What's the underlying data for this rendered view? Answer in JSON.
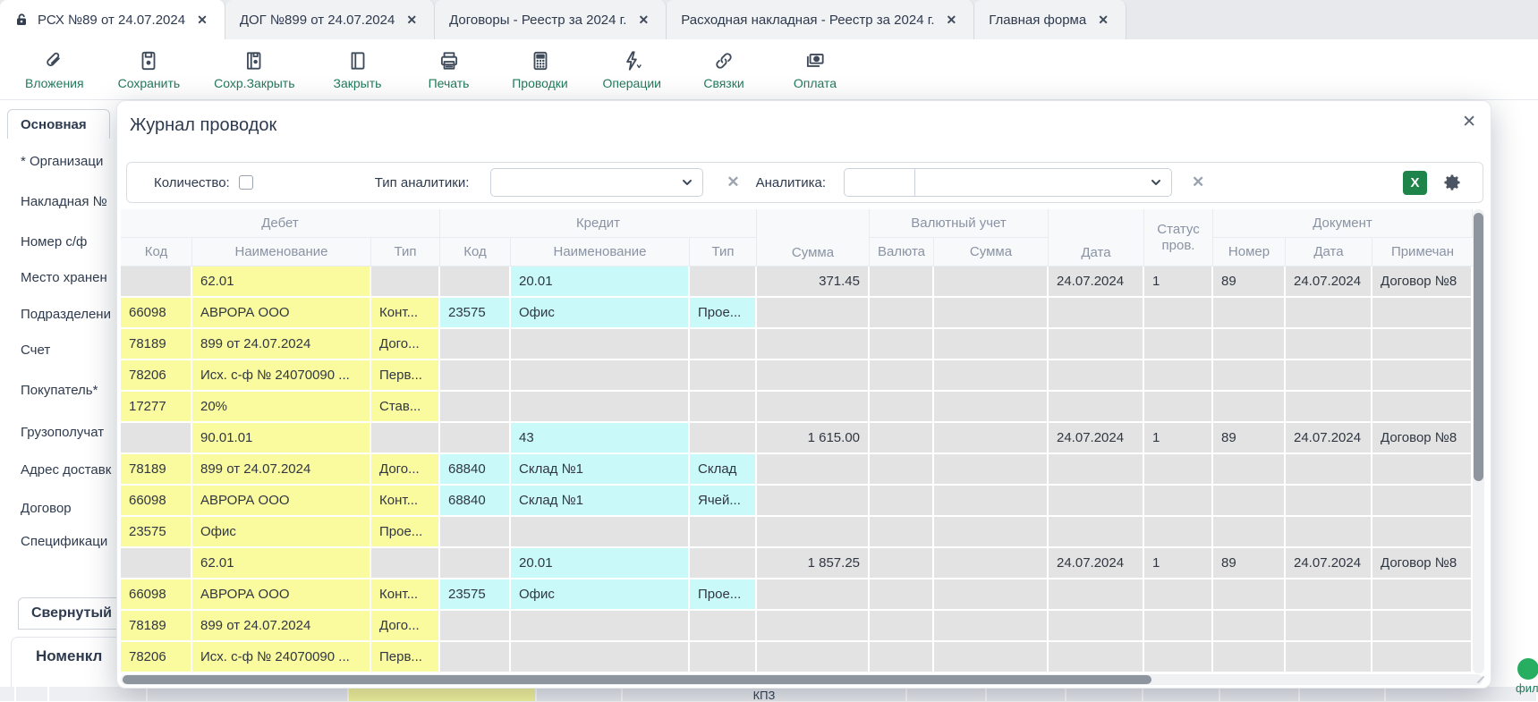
{
  "tabs": [
    {
      "label": "РСХ №89 от 24.07.2024",
      "close": "✕",
      "active": true
    },
    {
      "label": "ДОГ №899 от 24.07.2024",
      "close": "✕",
      "active": false
    },
    {
      "label": "Договоры - Реестр за 2024 г.",
      "close": "✕",
      "active": false
    },
    {
      "label": "Расходная накладная - Реестр за 2024 г.",
      "close": "✕",
      "active": false
    },
    {
      "label": "Главная форма",
      "close": "✕",
      "active": false
    }
  ],
  "toolbar": {
    "items": [
      {
        "label": "Вложения",
        "icon": "paperclip-icon"
      },
      {
        "label": "Сохранить",
        "icon": "save-icon"
      },
      {
        "label": "Сохр.Закрыть",
        "icon": "save-close-icon"
      },
      {
        "label": "Закрыть",
        "icon": "door-icon"
      },
      {
        "label": "Печать",
        "icon": "printer-icon"
      },
      {
        "label": "Проводки",
        "icon": "calculator-icon"
      },
      {
        "label": "Операции",
        "icon": "lightning-icon"
      },
      {
        "label": "Связки",
        "icon": "links-icon"
      },
      {
        "label": "Оплата",
        "icon": "payment-icon"
      }
    ]
  },
  "form": {
    "tab_label": "Основная",
    "labels": [
      "* Организаци",
      "Накладная №",
      "Номер с/ф",
      "Место хранен",
      "Подразделени",
      "Счет",
      "Покупатель*",
      "Грузополучат",
      "Адрес доставк",
      "Договор",
      "Спецификаци"
    ],
    "collapsed_label": "Свернутый",
    "section_label": "Номенкл"
  },
  "modal": {
    "title": "Журнал проводок",
    "close": "✕",
    "filters": {
      "quantity_label": "Количество:",
      "analytics_type_label": "Тип аналитики:",
      "analytics_label": "Аналитика:",
      "clear_icon": "✕",
      "excel_label": "X"
    },
    "table": {
      "groups": {
        "debit": "Дебет",
        "credit": "Кредит",
        "currency": "Валютный учет",
        "document": "Документ"
      },
      "columns": {
        "code": "Код",
        "name": "Наименование",
        "type": "Тип",
        "sum": "Сумма",
        "currency": "Валюта",
        "cur_sum": "Сумма",
        "date": "Дата",
        "status": "Статус пров.",
        "number": "Номер",
        "doc_date": "Дата",
        "note": "Примечан"
      },
      "rows": [
        [
          "",
          "62.01",
          "",
          "",
          "20.01",
          "",
          "371.45",
          "",
          "",
          "24.07.2024",
          "1",
          "89",
          "24.07.2024",
          "Договор №8"
        ],
        [
          "66098",
          "АВРОРА ООО",
          "Конт...",
          "23575",
          "Офис",
          "Прое...",
          "",
          "",
          "",
          "",
          "",
          "",
          "",
          ""
        ],
        [
          "78189",
          "899 от 24.07.2024",
          "Дого...",
          "",
          "",
          "",
          "",
          "",
          "",
          "",
          "",
          "",
          "",
          ""
        ],
        [
          "78206",
          "Исх. с-ф № 24070090 ...",
          "Перв...",
          "",
          "",
          "",
          "",
          "",
          "",
          "",
          "",
          "",
          "",
          ""
        ],
        [
          "17277",
          "20%",
          "Став...",
          "",
          "",
          "",
          "",
          "",
          "",
          "",
          "",
          "",
          "",
          ""
        ],
        [
          "",
          "90.01.01",
          "",
          "",
          "43",
          "",
          "1 615.00",
          "",
          "",
          "24.07.2024",
          "1",
          "89",
          "24.07.2024",
          "Договор №8"
        ],
        [
          "78189",
          "899 от 24.07.2024",
          "Дого...",
          "68840",
          "Склад №1",
          "Склад",
          "",
          "",
          "",
          "",
          "",
          "",
          "",
          ""
        ],
        [
          "66098",
          "АВРОРА ООО",
          "Конт...",
          "68840",
          "Склад №1",
          "Ячей...",
          "",
          "",
          "",
          "",
          "",
          "",
          "",
          ""
        ],
        [
          "23575",
          "Офис",
          "Прое...",
          "",
          "",
          "",
          "",
          "",
          "",
          "",
          "",
          "",
          "",
          ""
        ],
        [
          "",
          "62.01",
          "",
          "",
          "20.01",
          "",
          "1 857.25",
          "",
          "",
          "24.07.2024",
          "1",
          "89",
          "24.07.2024",
          "Договор №8"
        ],
        [
          "66098",
          "АВРОРА ООО",
          "Конт...",
          "23575",
          "Офис",
          "Прое...",
          "",
          "",
          "",
          "",
          "",
          "",
          "",
          ""
        ],
        [
          "78189",
          "899 от 24.07.2024",
          "Дого...",
          "",
          "",
          "",
          "",
          "",
          "",
          "",
          "",
          "",
          "",
          ""
        ],
        [
          "78206",
          "Исх. с-ф № 24070090 ...",
          "Перв...",
          "",
          "",
          "",
          "",
          "",
          "",
          "",
          "",
          "",
          "",
          ""
        ]
      ]
    }
  },
  "bottom": {
    "kpz_label": "КПЗ",
    "filter_label": "фил"
  },
  "colors": {
    "accent_green": "#227a5b",
    "excel_green": "#1e8449",
    "debit_highlight": "#fafa9e",
    "credit_highlight": "#c9f9f9",
    "toggle_green": "#27ae60",
    "navy": "#2e3a4e"
  }
}
